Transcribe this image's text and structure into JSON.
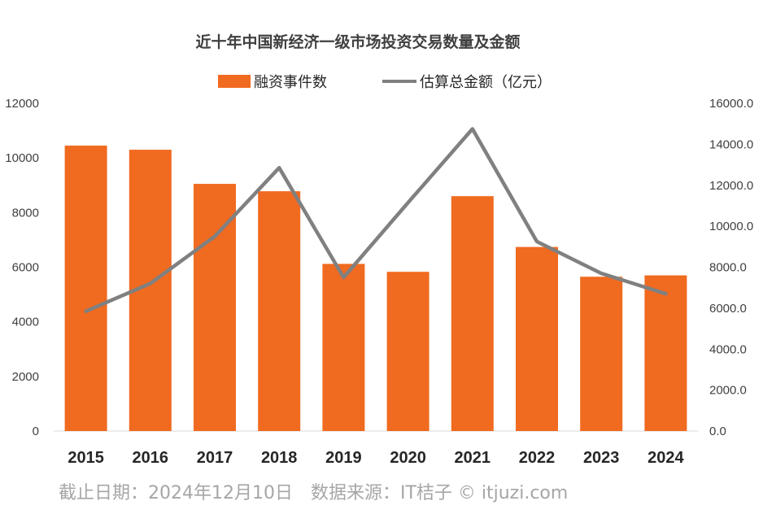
{
  "chart_data": {
    "type": "bar",
    "title": "近十年中国新经济一级市场投资交易数量及金额",
    "categories": [
      "2015",
      "2016",
      "2017",
      "2018",
      "2019",
      "2020",
      "2021",
      "2022",
      "2023",
      "2024"
    ],
    "series": [
      {
        "name": "融资事件数",
        "type": "bar",
        "axis": "left",
        "color": "#f06a20",
        "values": [
          10450,
          10300,
          9050,
          8780,
          6120,
          5830,
          8600,
          6740,
          5650,
          5700
        ]
      },
      {
        "name": "估算总金额（亿元）",
        "type": "line",
        "axis": "right",
        "color": "#808080",
        "values": [
          5850,
          7200,
          9500,
          12850,
          7500,
          11150,
          14750,
          9250,
          7700,
          6700
        ]
      }
    ],
    "y_left": {
      "range": [
        0,
        12000
      ],
      "ticks": [
        "0",
        "2000",
        "4000",
        "6000",
        "8000",
        "10000",
        "12000"
      ]
    },
    "y_right": {
      "range": [
        0,
        16000
      ],
      "ticks": [
        "0.0",
        "2000.0",
        "4000.0",
        "6000.0",
        "8000.0",
        "10000.0",
        "12000.0",
        "14000.0",
        "16000.0"
      ]
    },
    "grid": false,
    "legend_position": "top"
  },
  "footer": "截止日期：2024年12月10日　数据来源：IT桔子 © itjuzi.com"
}
